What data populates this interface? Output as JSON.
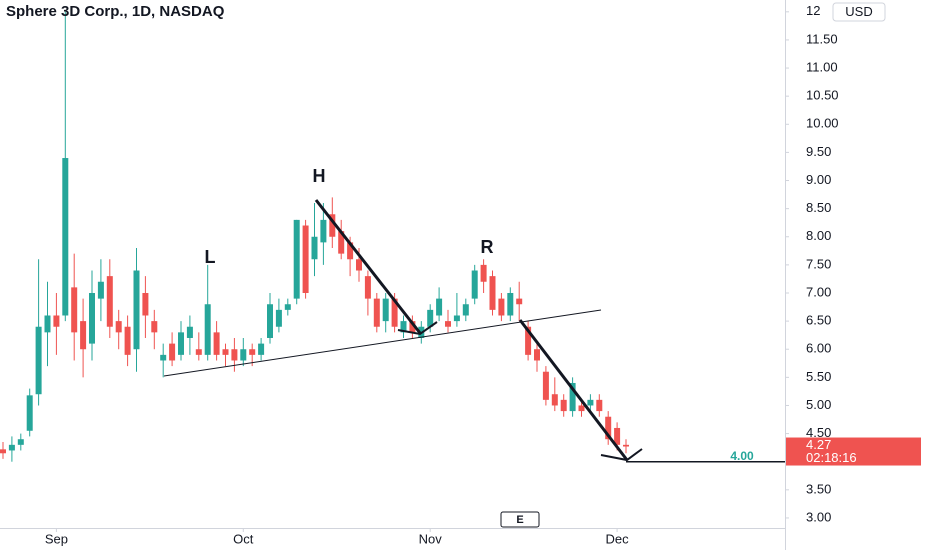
{
  "chart_data": {
    "type": "candlestick",
    "title": "Sphere 3D Corp., 1D, NASDAQ",
    "currency": "USD",
    "categories": [
      null,
      null,
      null,
      null,
      null,
      null,
      "Sep",
      null,
      null,
      null,
      null,
      null,
      null,
      null,
      null,
      null,
      null,
      null,
      null,
      null,
      null,
      null,
      null,
      null,
      null,
      null,
      null,
      "Oct",
      null,
      null,
      null,
      null,
      null,
      null,
      null,
      null,
      null,
      null,
      null,
      null,
      null,
      null,
      null,
      null,
      null,
      null,
      null,
      null,
      "Nov",
      null,
      null,
      null,
      null,
      null,
      null,
      null,
      null,
      null,
      null,
      null,
      null,
      null,
      null,
      null,
      null,
      null,
      null,
      null,
      null,
      "Dec",
      null
    ],
    "open": [
      4.22,
      4.2,
      4.3,
      4.55,
      5.2,
      6.3,
      6.6,
      6.6,
      7.1,
      6.5,
      6.1,
      6.9,
      7.3,
      6.5,
      6.4,
      6.0,
      7.0,
      6.5,
      5.8,
      6.1,
      5.9,
      6.2,
      6.0,
      5.9,
      6.3,
      6.0,
      6.0,
      5.8,
      6.0,
      5.9,
      6.2,
      6.4,
      6.7,
      6.9,
      8.2,
      7.6,
      7.9,
      8.4,
      8.1,
      7.9,
      7.6,
      7.3,
      6.9,
      6.5,
      6.9,
      6.3,
      6.5,
      6.2,
      6.4,
      6.6,
      6.5,
      6.5,
      6.6,
      6.9,
      7.5,
      7.3,
      6.9,
      6.6,
      6.9,
      6.4,
      6.0,
      5.6,
      5.2,
      5.1,
      4.9,
      5.0,
      5.0,
      5.1,
      4.8,
      4.6,
      4.3
    ],
    "high": [
      4.35,
      4.45,
      4.5,
      5.3,
      7.6,
      7.2,
      7.0,
      12.0,
      7.7,
      6.9,
      7.4,
      7.6,
      7.6,
      6.7,
      6.6,
      7.8,
      7.3,
      6.7,
      6.1,
      6.3,
      6.5,
      6.6,
      6.3,
      7.5,
      6.5,
      6.1,
      6.2,
      6.2,
      6.1,
      6.2,
      7.0,
      6.9,
      6.9,
      8.3,
      8.3,
      8.6,
      8.6,
      8.7,
      8.3,
      8.0,
      7.8,
      7.4,
      7.0,
      7.0,
      7.0,
      6.6,
      6.6,
      6.5,
      6.8,
      7.1,
      6.7,
      7.0,
      6.9,
      7.5,
      7.6,
      7.4,
      7.0,
      7.1,
      7.2,
      6.5,
      6.1,
      5.7,
      5.5,
      5.2,
      5.5,
      5.1,
      5.2,
      5.2,
      4.9,
      4.7,
      4.4
    ],
    "low": [
      4.05,
      4.0,
      4.2,
      4.45,
      5.0,
      5.7,
      5.9,
      6.5,
      5.8,
      5.5,
      5.8,
      6.5,
      6.2,
      6.0,
      5.7,
      5.6,
      6.2,
      6.0,
      5.5,
      5.7,
      5.8,
      5.9,
      5.8,
      5.8,
      5.8,
      5.7,
      5.6,
      5.7,
      5.7,
      5.8,
      6.1,
      6.3,
      6.6,
      6.8,
      6.9,
      7.3,
      7.5,
      7.8,
      7.6,
      7.3,
      7.2,
      6.6,
      6.3,
      6.3,
      6.3,
      6.2,
      6.2,
      6.1,
      6.3,
      6.5,
      6.3,
      6.4,
      6.5,
      6.8,
      7.0,
      6.6,
      6.5,
      6.5,
      6.5,
      5.8,
      5.6,
      5.0,
      4.9,
      4.8,
      4.8,
      4.8,
      4.9,
      4.8,
      4.3,
      4.2,
      4.15
    ],
    "close": [
      4.15,
      4.3,
      4.4,
      5.18,
      6.4,
      6.6,
      6.4,
      9.4,
      6.3,
      6.0,
      7.0,
      7.2,
      6.4,
      6.3,
      5.9,
      7.4,
      6.6,
      6.3,
      5.9,
      5.8,
      6.3,
      6.4,
      5.9,
      6.8,
      5.9,
      5.9,
      5.8,
      6.0,
      5.9,
      6.1,
      6.8,
      6.7,
      6.8,
      8.3,
      7.0,
      8.0,
      8.3,
      8.0,
      7.7,
      7.6,
      7.4,
      6.9,
      6.4,
      6.9,
      6.4,
      6.5,
      6.3,
      6.4,
      6.7,
      6.9,
      6.4,
      6.6,
      6.8,
      7.4,
      7.2,
      6.7,
      6.6,
      7.0,
      6.8,
      5.9,
      5.8,
      5.1,
      5.0,
      4.9,
      5.4,
      4.9,
      5.1,
      4.9,
      4.4,
      4.3,
      4.27
    ],
    "up_color": "#26a69a",
    "down_color": "#ef5350",
    "ylim": [
      2.43,
      12.21
    ],
    "yticks": [
      {
        "value": 3,
        "label": "3.00"
      },
      {
        "value": 3.5,
        "label": "3.50"
      },
      {
        "value": 4,
        "label": "4.00"
      },
      {
        "value": 4.5,
        "label": "4.50"
      },
      {
        "value": 5,
        "label": "5.00"
      },
      {
        "value": 5.5,
        "label": "5.50"
      },
      {
        "value": 6,
        "label": "6.00"
      },
      {
        "value": 6.5,
        "label": "6.50"
      },
      {
        "value": 7,
        "label": "7.00"
      },
      {
        "value": 7.5,
        "label": "7.50"
      },
      {
        "value": 8,
        "label": "8.00"
      },
      {
        "value": 8.5,
        "label": "8.50"
      },
      {
        "value": 9,
        "label": "9.00"
      },
      {
        "value": 9.5,
        "label": "9.50"
      },
      {
        "value": 10,
        "label": "10.00"
      },
      {
        "value": 10.5,
        "label": "10.50"
      },
      {
        "value": 11,
        "label": "11.00"
      },
      {
        "value": 11.5,
        "label": "11.50"
      },
      12
    ],
    "last_price": 4.27,
    "countdown": "02:18:16",
    "target_line": {
      "value": 4,
      "label": "4.00"
    },
    "annotations": [
      "L",
      "H",
      "R"
    ],
    "earnings_marker": "E"
  }
}
